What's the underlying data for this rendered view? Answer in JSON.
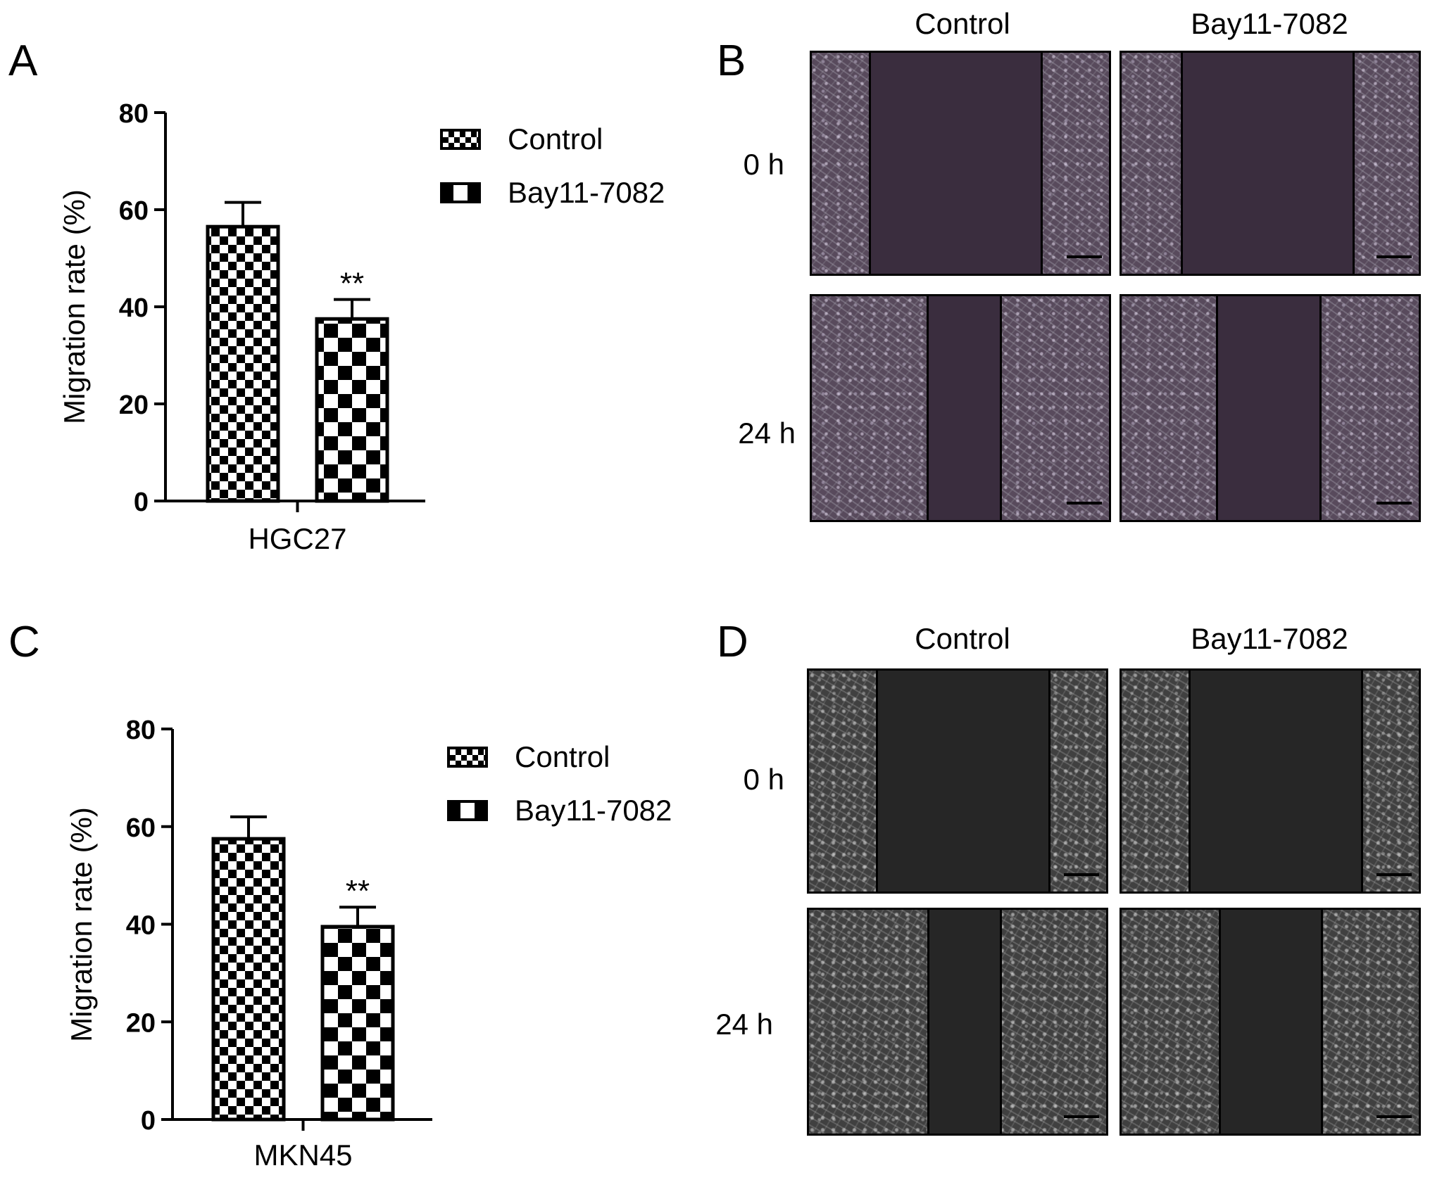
{
  "panels": {
    "A": "A",
    "B": "B",
    "C": "C",
    "D": "D"
  },
  "legend": {
    "control": "Control",
    "bay": "Bay11-7082"
  },
  "micrographs": {
    "col_labels": [
      "Control",
      "Bay11-7082"
    ],
    "row_labels": [
      "0 h",
      "24 h"
    ]
  },
  "chart_data": [
    {
      "type": "bar",
      "categories": [
        "HGC27"
      ],
      "series": [
        {
          "name": "Control",
          "values": [
            56.5
          ],
          "error": [
            5
          ],
          "pattern": "small-checker"
        },
        {
          "name": "Bay11-7082",
          "values": [
            37.5
          ],
          "error": [
            4
          ],
          "pattern": "large-checker",
          "annotation": "**"
        }
      ],
      "ylabel": "Migration rate (%)",
      "xlabel": "HGC27",
      "ylim": [
        0,
        80
      ],
      "yticks": [
        "0",
        "20",
        "40",
        "60",
        "80"
      ]
    },
    {
      "type": "bar",
      "categories": [
        "MKN45"
      ],
      "series": [
        {
          "name": "Control",
          "values": [
            57.5
          ],
          "error": [
            4.5
          ],
          "pattern": "small-checker"
        },
        {
          "name": "Bay11-7082",
          "values": [
            39.5
          ],
          "error": [
            4
          ],
          "pattern": "large-checker",
          "annotation": "**"
        }
      ],
      "ylabel": "Migration rate (%)",
      "xlabel": "MKN45",
      "ylim": [
        0,
        80
      ],
      "yticks": [
        "0",
        "20",
        "40",
        "60",
        "80"
      ]
    }
  ],
  "colors": {
    "bar_fill": "#000000",
    "background": "#ffffff"
  }
}
